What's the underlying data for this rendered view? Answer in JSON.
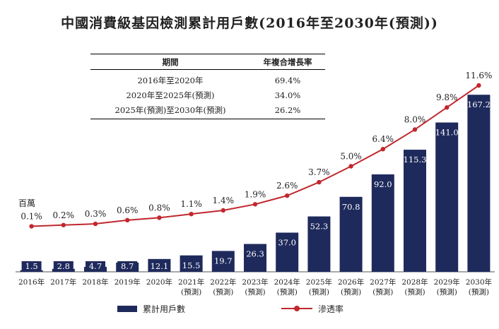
{
  "chart_data": {
    "type": "bar",
    "title": "中國消費級基因檢測累計用戶數(2016年至2030年(預測))",
    "unit_label": "百萬",
    "categories": [
      [
        "2016年"
      ],
      [
        "2017年"
      ],
      [
        "2018年"
      ],
      [
        "2019年"
      ],
      [
        "2020年"
      ],
      [
        "2021年",
        "(預測)"
      ],
      [
        "2022年",
        "(預測)"
      ],
      [
        "2023年",
        "(預測)"
      ],
      [
        "2024年",
        "(預測)"
      ],
      [
        "2025年",
        "(預測)"
      ],
      [
        "2026年",
        "(預測)"
      ],
      [
        "2027年",
        "(預測)"
      ],
      [
        "2028年",
        "(預測)"
      ],
      [
        "2029年",
        "(預測)"
      ],
      [
        "2030年",
        "(預測)"
      ]
    ],
    "series": [
      {
        "name": "累計用戶數",
        "type": "bar",
        "color": "#1f2a5c",
        "values": [
          1.5,
          2.8,
          4.7,
          8.7,
          12.1,
          15.5,
          19.7,
          26.3,
          37.0,
          52.3,
          70.8,
          92.0,
          115.3,
          141.0,
          167.2
        ],
        "labels": [
          "1.5",
          "2.8",
          "4.7",
          "8.7",
          "12.1",
          "15.5",
          "19.7",
          "26.3",
          "37.0",
          "52.3",
          "70.8",
          "92.0",
          "115.3",
          "141.0",
          "167.2"
        ]
      },
      {
        "name": "滲透率",
        "type": "line",
        "color": "#c1272d",
        "values": [
          0.1,
          0.2,
          0.3,
          0.6,
          0.8,
          1.1,
          1.4,
          1.9,
          2.6,
          3.7,
          5.0,
          6.4,
          8.0,
          9.8,
          11.6
        ],
        "labels": [
          "0.1%",
          "0.2%",
          "0.3%",
          "0.6%",
          "0.8%",
          "1.1%",
          "1.4%",
          "1.9%",
          "2.6%",
          "3.7%",
          "5.0%",
          "6.4%",
          "8.0%",
          "9.8%",
          "11.6%"
        ]
      }
    ]
  },
  "cagr_table": {
    "headers": [
      "期間",
      "年複合增長率"
    ],
    "rows": [
      [
        "2016年至2020年",
        "69.4%"
      ],
      [
        "2020年至2025年(預測)",
        "34.0%"
      ],
      [
        "2025年(預測)至2030年(預測)",
        "26.2%"
      ]
    ]
  },
  "legend": {
    "bar_label": "累計用戶數",
    "line_label": "滲透率"
  }
}
